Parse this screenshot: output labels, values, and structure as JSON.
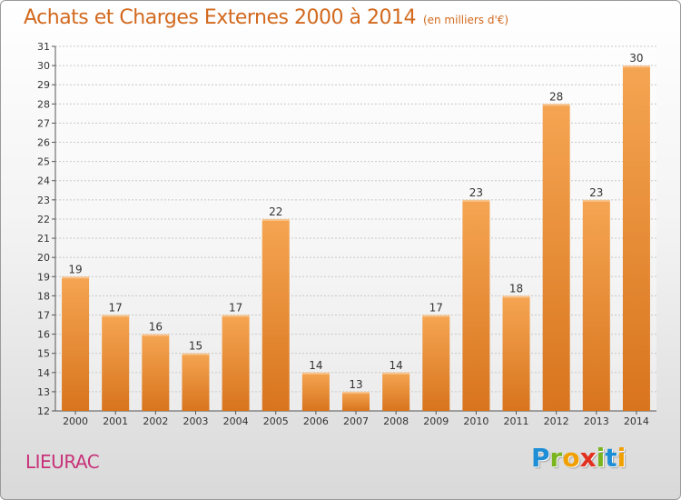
{
  "header": {
    "title": "Achats et Charges Externes 2000 à 2014",
    "subtitle": "(en milliers d'€)"
  },
  "footer": {
    "commune": "LIEURAC",
    "logo_letters": [
      "P",
      "r",
      "o",
      "x",
      "i",
      "t",
      "i"
    ]
  },
  "colors": {
    "title": "#d2691e",
    "commune": "#c8327a",
    "bar_top": "#f5a552",
    "bar_bottom": "#d8741d",
    "grid": "#c8c8c8",
    "logo": [
      "#1e8fd6",
      "#7ab51d",
      "#f0a000",
      "#e2301f",
      "#7ab51d",
      "#1e8fd6",
      "#f0a000"
    ]
  },
  "chart_data": {
    "type": "bar",
    "categories": [
      "2000",
      "2001",
      "2002",
      "2003",
      "2004",
      "2005",
      "2006",
      "2007",
      "2008",
      "2009",
      "2010",
      "2011",
      "2012",
      "2013",
      "2014"
    ],
    "values": [
      19,
      17,
      16,
      15,
      17,
      22,
      14,
      13,
      14,
      17,
      23,
      18,
      28,
      23,
      30
    ],
    "title": "Achats et Charges Externes 2000 à 2014",
    "subtitle": "(en milliers d'€)",
    "xlabel": "",
    "ylabel": "",
    "ylim": [
      12,
      31
    ],
    "yticks": [
      12,
      13,
      14,
      15,
      16,
      17,
      18,
      19,
      20,
      21,
      22,
      23,
      24,
      25,
      26,
      27,
      28,
      29,
      30,
      31
    ],
    "grid": true,
    "legend": "none",
    "data_labels": true
  }
}
